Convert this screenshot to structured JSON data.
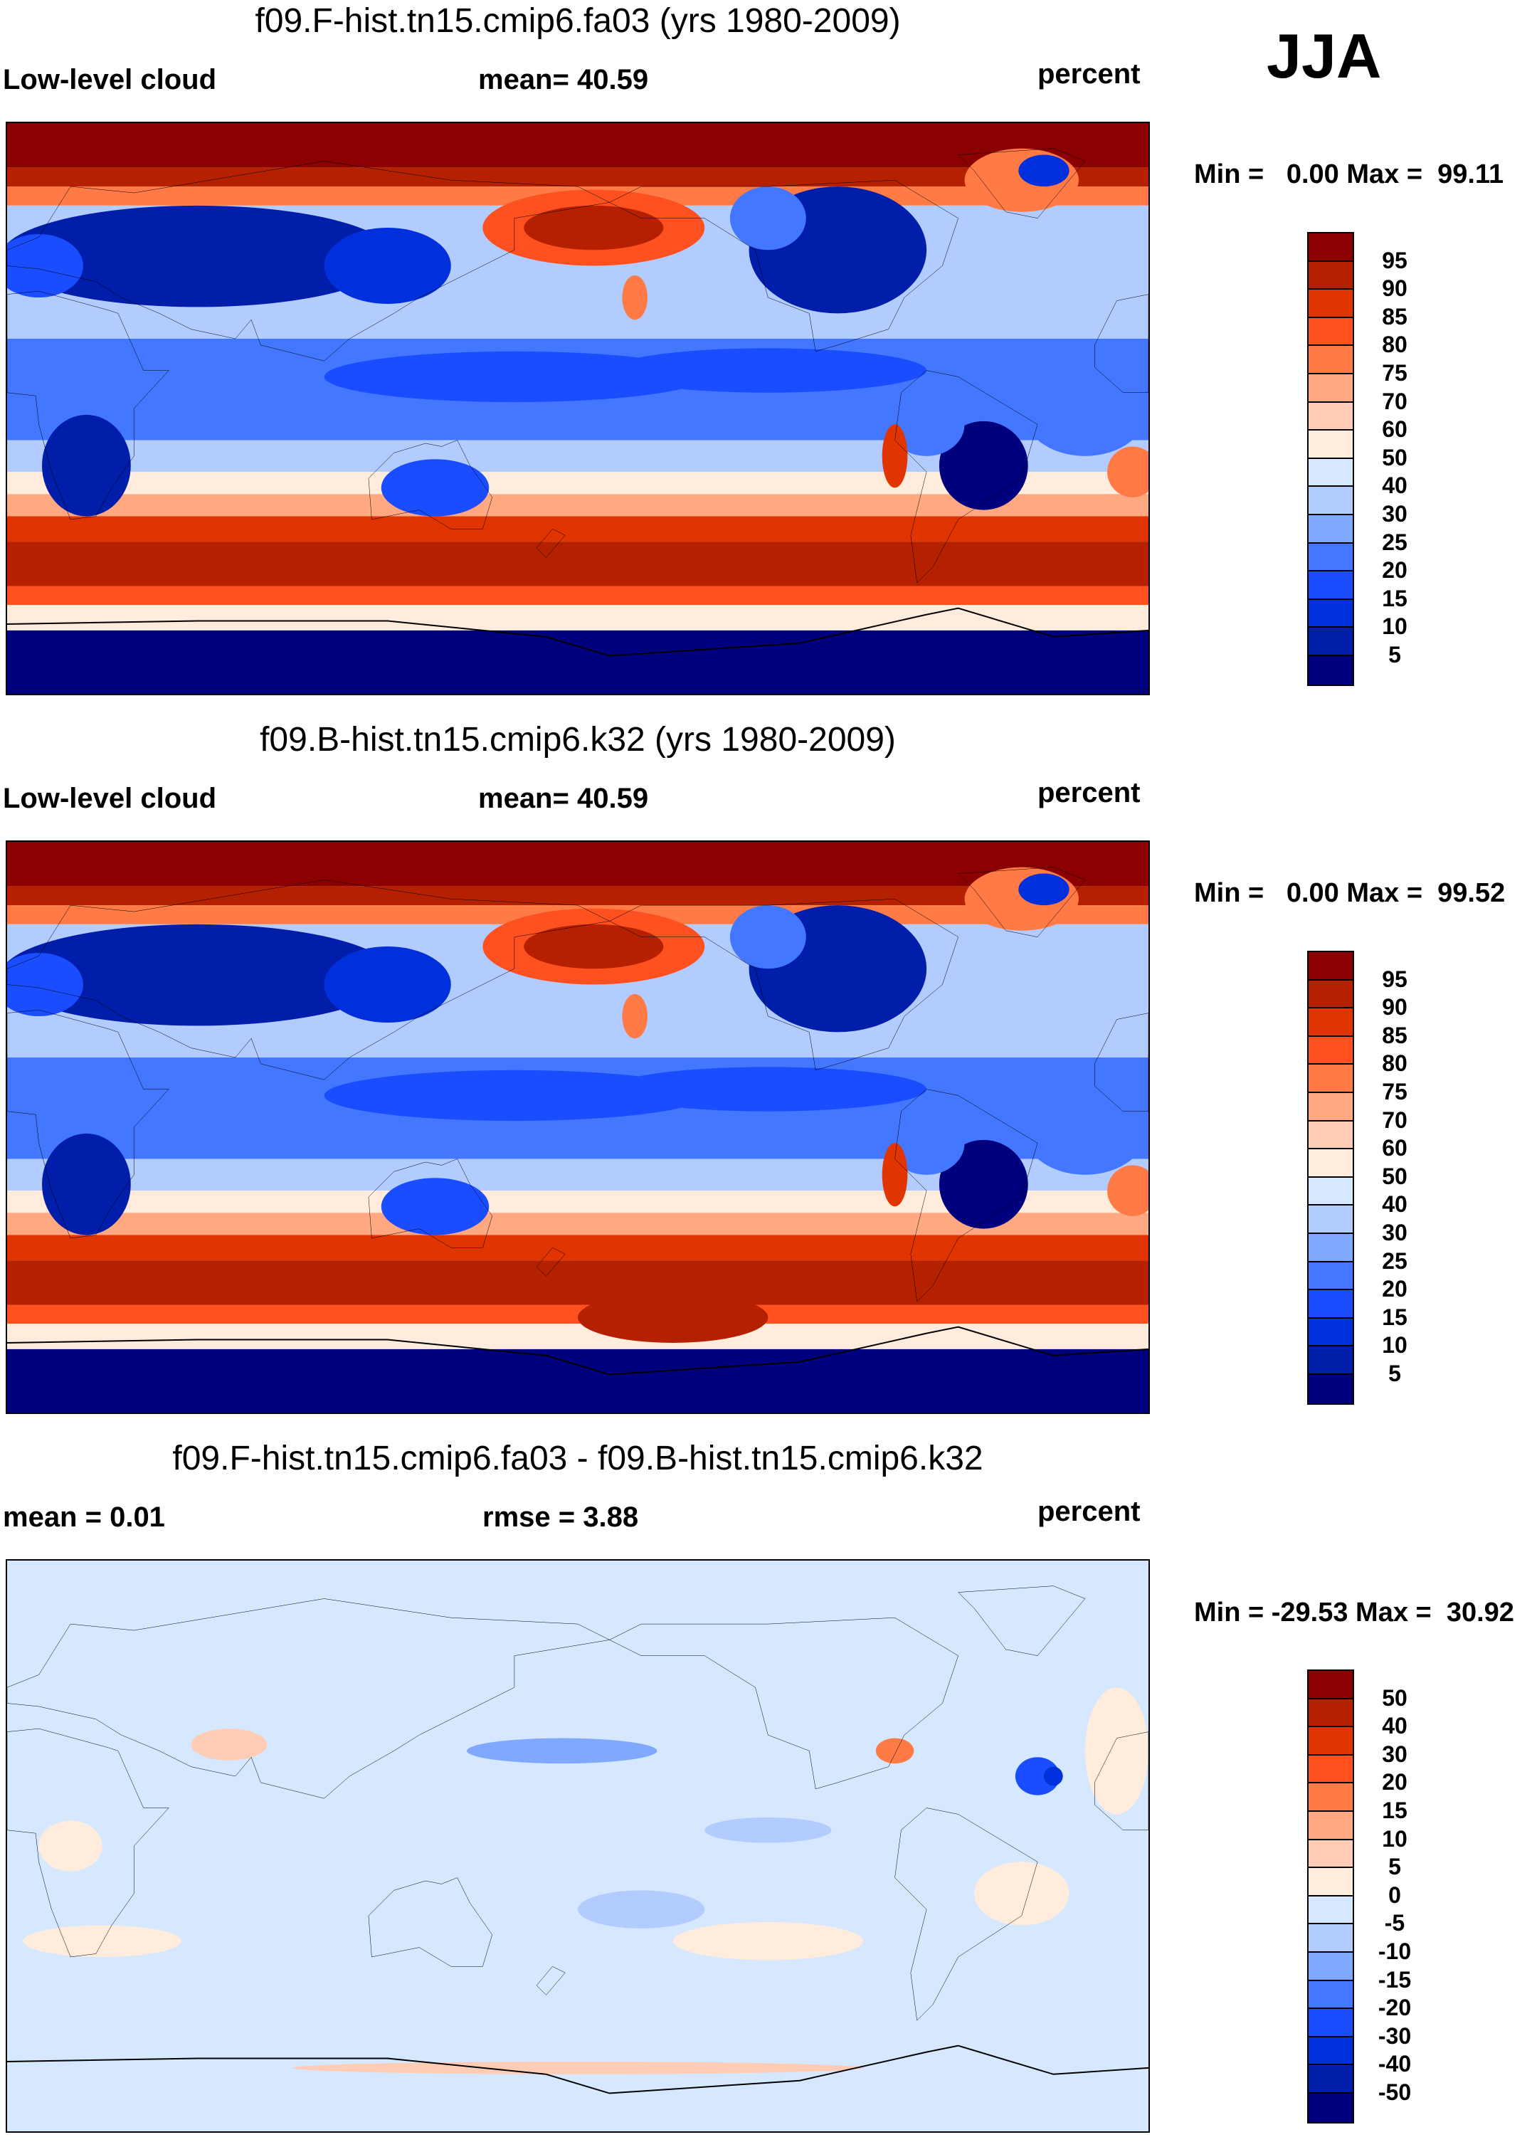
{
  "season": "JJA",
  "colors": [
    "#8b0000",
    "#b52000",
    "#e03500",
    "#ff5020",
    "#ff7a45",
    "#ffa882",
    "#ffcdb5",
    "#ffecdc",
    "#d6e8ff",
    "#b3ccff",
    "#80a8ff",
    "#4477ff",
    "#1a4dff",
    "#002fdc",
    "#001eaa",
    "#00007f"
  ],
  "chart_data": [
    {
      "type": "heatmap",
      "title": "f09.F-hist.tn15.cmip6.fa03 (yrs 1980-2009)",
      "left": "Low-level cloud",
      "center": "mean=  40.59",
      "right": "percent",
      "minmax": "Min =   0.00 Max =  99.11",
      "min": 0.0,
      "max": 99.11,
      "mean": 40.59,
      "levels": [
        "95",
        "90",
        "85",
        "80",
        "75",
        "70",
        "60",
        "50",
        "40",
        "30",
        "25",
        "20",
        "15",
        "10",
        "5"
      ]
    },
    {
      "type": "heatmap",
      "title": "f09.B-hist.tn15.cmip6.k32 (yrs 1980-2009)",
      "left": "Low-level cloud",
      "center": "mean=  40.59",
      "right": "percent",
      "minmax": "Min =   0.00 Max =  99.52",
      "min": 0.0,
      "max": 99.52,
      "mean": 40.59,
      "levels": [
        "95",
        "90",
        "85",
        "80",
        "75",
        "70",
        "60",
        "50",
        "40",
        "30",
        "25",
        "20",
        "15",
        "10",
        "5"
      ]
    },
    {
      "type": "heatmap",
      "title": "f09.F-hist.tn15.cmip6.fa03 - f09.B-hist.tn15.cmip6.k32",
      "left": "mean =   0.01",
      "center": "rmse =   3.88",
      "right": "percent",
      "minmax": "Min = -29.53 Max =  30.92",
      "min": -29.53,
      "max": 30.92,
      "mean": 0.01,
      "rmse": 3.88,
      "levels": [
        "50",
        "40",
        "30",
        "20",
        "15",
        "10",
        "5",
        "0",
        "-5",
        "-10",
        "-15",
        "-20",
        "-30",
        "-40",
        "-50"
      ]
    }
  ]
}
